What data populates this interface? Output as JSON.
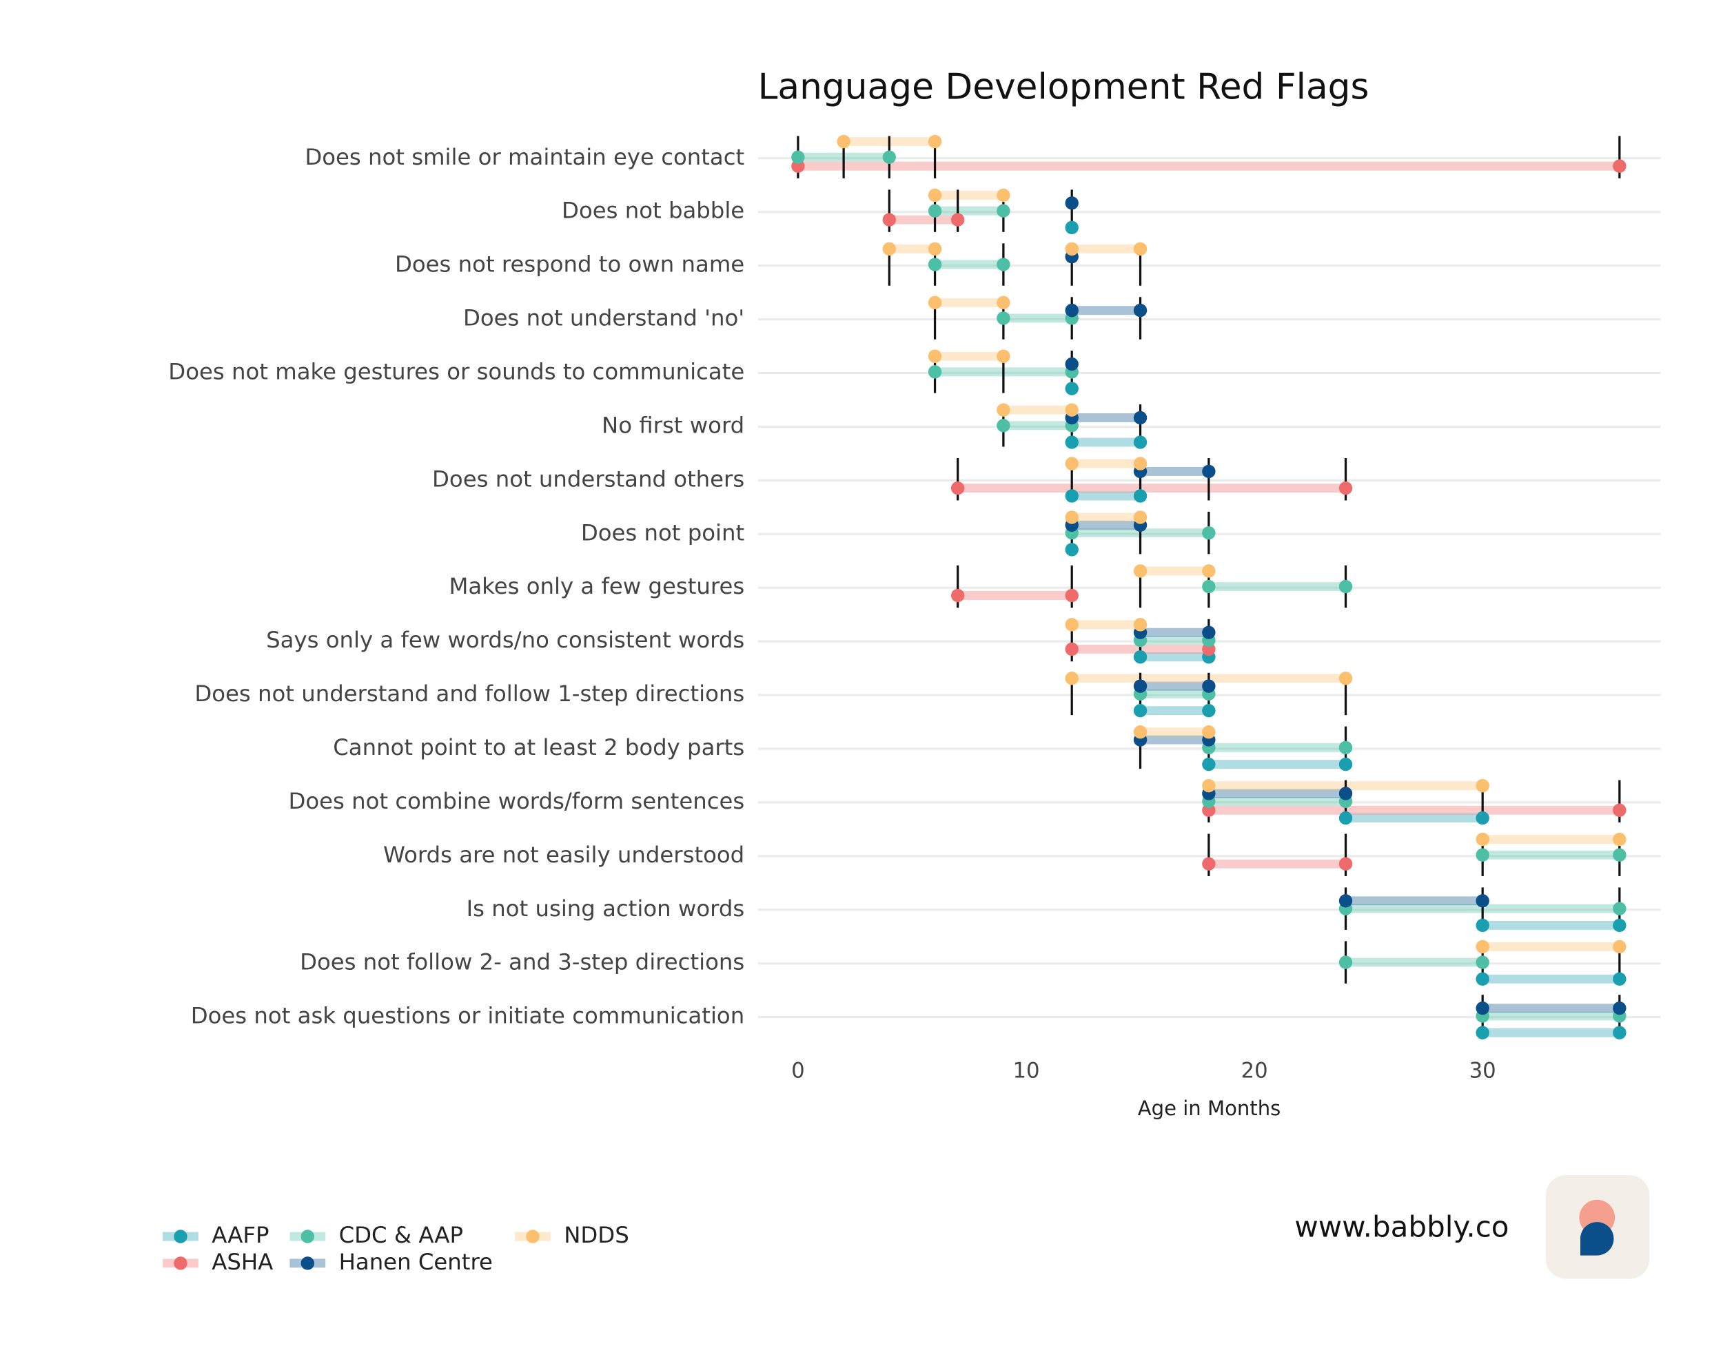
{
  "chart_data": {
    "type": "dumbbell",
    "title": "Language Development Red Flags",
    "x_label": "Age in Months",
    "xlim": [
      -1.76,
      37.8
    ],
    "xticks": [
      0,
      10,
      20,
      30
    ],
    "grid": true,
    "categories": [
      "Does not smile or maintain eye contact",
      "Does not babble",
      "Does not respond to own name",
      "Does not understand 'no'",
      "Does not make gestures or sounds to communicate",
      "No first word",
      "Does not understand others",
      "Does not point",
      "Makes only a few gestures",
      "Says only a few words/no consistent words",
      "Does not understand and follow 1-step directions",
      "Cannot point to at least 2 body parts",
      "Does not combine words/form sentences",
      "Words are not easily understood",
      "Is not using action words",
      "Does not follow 2- and 3-step directions",
      "Does not ask questions or initiate communication"
    ],
    "series": [
      {
        "name": "AAFP",
        "color": "#1a9fb0",
        "values": [
          null,
          [
            [
              12,
              12
            ]
          ],
          null,
          null,
          [
            [
              12,
              12
            ]
          ],
          [
            [
              12,
              15
            ]
          ],
          [
            [
              12,
              15
            ]
          ],
          [
            [
              12,
              12
            ]
          ],
          null,
          [
            [
              15,
              18
            ]
          ],
          [
            [
              15,
              18
            ]
          ],
          [
            [
              18,
              24
            ]
          ],
          [
            [
              24,
              30
            ]
          ],
          null,
          [
            [
              30,
              36
            ]
          ],
          [
            [
              30,
              36
            ]
          ],
          [
            [
              30,
              36
            ]
          ]
        ]
      },
      {
        "name": "ASHA",
        "color": "#ef6b6b",
        "values": [
          [
            [
              0,
              36
            ]
          ],
          [
            [
              4,
              7
            ]
          ],
          null,
          null,
          null,
          null,
          [
            [
              7,
              24
            ]
          ],
          null,
          [
            [
              7,
              12
            ]
          ],
          [
            [
              12,
              18
            ]
          ],
          null,
          null,
          [
            [
              18,
              36
            ]
          ],
          [
            [
              18,
              24
            ]
          ],
          null,
          null,
          null
        ]
      },
      {
        "name": "CDC & AAP",
        "color": "#4dbfa5",
        "values": [
          [
            [
              0,
              4
            ]
          ],
          [
            [
              6,
              9
            ]
          ],
          [
            [
              6,
              9
            ]
          ],
          [
            [
              9,
              12
            ]
          ],
          [
            [
              6,
              12
            ]
          ],
          [
            [
              9,
              12
            ]
          ],
          null,
          [
            [
              12,
              18
            ]
          ],
          [
            [
              18,
              24
            ]
          ],
          [
            [
              15,
              18
            ]
          ],
          [
            [
              15,
              18
            ]
          ],
          [
            [
              18,
              24
            ]
          ],
          [
            [
              18,
              24
            ]
          ],
          [
            [
              30,
              36
            ]
          ],
          [
            [
              24,
              36
            ]
          ],
          [
            [
              24,
              30
            ]
          ],
          [
            [
              30,
              36
            ]
          ]
        ]
      },
      {
        "name": "Hanen Centre",
        "color": "#0b4f8a",
        "values": [
          null,
          [
            [
              12,
              12
            ]
          ],
          [
            [
              12,
              12
            ]
          ],
          [
            [
              12,
              15
            ]
          ],
          [
            [
              12,
              12
            ]
          ],
          [
            [
              12,
              15
            ]
          ],
          [
            [
              15,
              18
            ]
          ],
          [
            [
              12,
              15
            ]
          ],
          null,
          [
            [
              15,
              18
            ]
          ],
          [
            [
              15,
              18
            ]
          ],
          [
            [
              15,
              18
            ]
          ],
          [
            [
              18,
              24
            ]
          ],
          null,
          [
            [
              24,
              30
            ]
          ],
          null,
          [
            [
              30,
              36
            ]
          ]
        ]
      },
      {
        "name": "NDDS",
        "color": "#fbbf6e",
        "values": [
          [
            [
              2,
              6
            ]
          ],
          [
            [
              6,
              9
            ]
          ],
          [
            [
              4,
              6
            ],
            [
              12,
              15
            ]
          ],
          [
            [
              6,
              9
            ]
          ],
          [
            [
              6,
              9
            ]
          ],
          [
            [
              9,
              12
            ]
          ],
          [
            [
              12,
              15
            ]
          ],
          [
            [
              12,
              15
            ]
          ],
          [
            [
              15,
              18
            ]
          ],
          [
            [
              12,
              15
            ]
          ],
          [
            [
              12,
              24
            ]
          ],
          [
            [
              15,
              18
            ]
          ],
          [
            [
              18,
              30
            ]
          ],
          [
            [
              30,
              36
            ]
          ],
          null,
          [
            [
              30,
              36
            ]
          ],
          null
        ]
      }
    ]
  },
  "footer": {
    "website": "www.babbly.co"
  }
}
